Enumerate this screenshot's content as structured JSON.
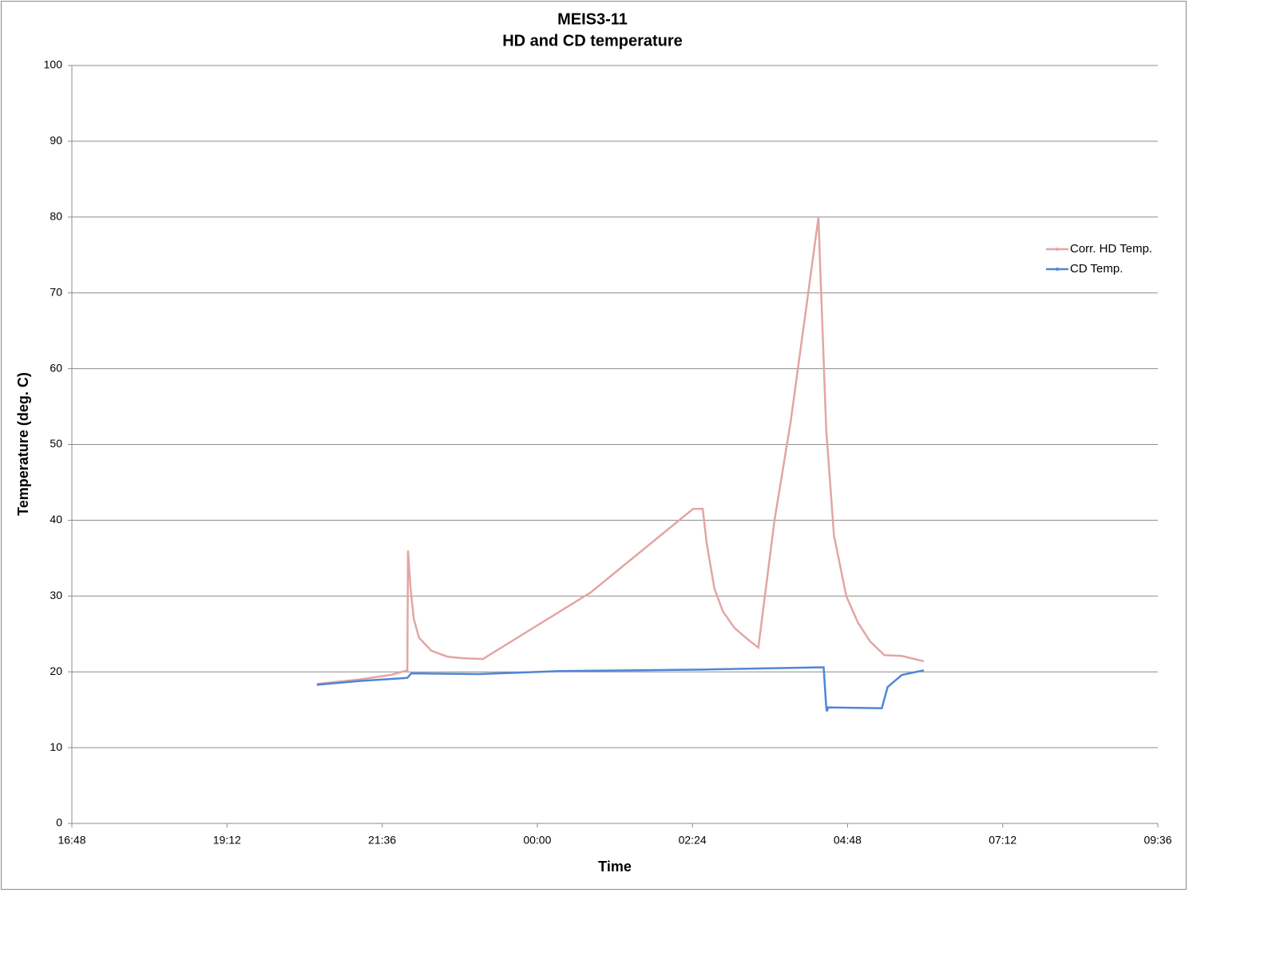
{
  "chart_data": {
    "type": "line",
    "title": "MEIS3-11",
    "subtitle": "HD and CD temperature",
    "x_label": "Time",
    "y_label": "Temperature (deg. C)",
    "xlim": [
      16.8,
      33.6
    ],
    "xticks": [
      {
        "value": 16.8,
        "label": "16:48"
      },
      {
        "value": 19.2,
        "label": "19:12"
      },
      {
        "value": 21.6,
        "label": "21:36"
      },
      {
        "value": 24,
        "label": "00:00"
      },
      {
        "value": 26.4,
        "label": "02:24"
      },
      {
        "value": 28.8,
        "label": "04:48"
      },
      {
        "value": 31.2,
        "label": "07:12"
      },
      {
        "value": 33.6,
        "label": "09:36"
      }
    ],
    "ylim": [
      0,
      100
    ],
    "yticks": [
      0,
      10,
      20,
      30,
      40,
      50,
      60,
      70,
      80,
      90,
      100
    ],
    "grid": true,
    "legend": "right",
    "series": [
      {
        "name": "Corr. HD Temp.",
        "color": "#e3a5a4",
        "x": [
          20.59,
          21.25,
          21.74,
          21.99,
          22.0,
          22.04,
          22.09,
          22.17,
          22.36,
          22.61,
          22.85,
          23.16,
          24.83,
          26.41,
          26.56,
          26.62,
          26.74,
          26.87,
          27.05,
          27.24,
          27.42,
          27.67,
          27.92,
          28.16,
          28.35,
          28.37,
          28.47,
          28.59,
          28.78,
          28.96,
          29.15,
          29.37,
          29.64,
          29.98
        ],
        "values": [
          18.4,
          19.0,
          19.6,
          20.2,
          36,
          31,
          27,
          24.5,
          22.8,
          22.0,
          21.8,
          21.7,
          30.5,
          41.5,
          41.5,
          37,
          31,
          28,
          25.8,
          24.4,
          23.2,
          40,
          53,
          68,
          80,
          75,
          52,
          38,
          30,
          26.5,
          24.0,
          22.2,
          22.1,
          21.4
        ]
      },
      {
        "name": "CD Temp.",
        "color": "#4f86d6",
        "x": [
          20.59,
          21.25,
          21.99,
          22.05,
          23.1,
          24.34,
          26.56,
          28.43,
          28.47,
          28.48,
          28.5,
          29.33,
          29.42,
          29.64,
          29.98
        ],
        "values": [
          18.3,
          18.8,
          19.2,
          19.8,
          19.7,
          20.1,
          20.3,
          20.6,
          15.4,
          14.8,
          15.3,
          15.2,
          18.0,
          19.6,
          20.2
        ]
      }
    ]
  }
}
